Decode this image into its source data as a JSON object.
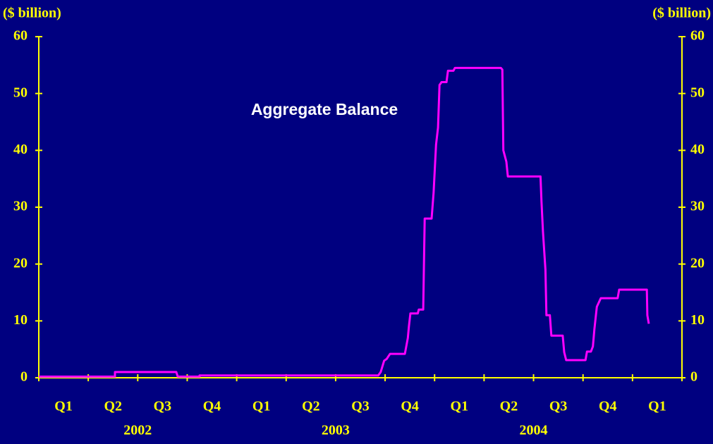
{
  "chart_data": {
    "type": "line",
    "y_label": "($ billion)",
    "y2_label": "($ billion)",
    "annotation": "Aggregate Balance",
    "categories": [
      "Q1",
      "Q2",
      "Q3",
      "Q4",
      "Q1",
      "Q2",
      "Q3",
      "Q4",
      "Q1",
      "Q2",
      "Q3",
      "Q4",
      "Q1"
    ],
    "years": [
      "2002",
      "2003",
      "2004"
    ],
    "xlim": [
      0,
      13
    ],
    "xticks": [
      0,
      1,
      2,
      3,
      4,
      5,
      6,
      7,
      8,
      9,
      10,
      11,
      12,
      13
    ],
    "ylim": [
      0,
      60
    ],
    "yticks": [
      0,
      10,
      20,
      30,
      40,
      50,
      60
    ],
    "y2lim": [
      0,
      60
    ],
    "y2ticks": [
      0,
      10,
      20,
      30,
      40,
      50,
      60
    ],
    "series": [
      {
        "name": "Aggregate Balance",
        "color": "#ff00ff",
        "x": [
          0,
          1.54,
          1.54,
          2.78,
          2.81,
          3.25,
          3.25,
          6.86,
          6.91,
          6.98,
          7.03,
          7.1,
          7.4,
          7.46,
          7.48,
          7.51,
          7.66,
          7.68,
          7.77,
          7.8,
          7.94,
          7.98,
          8.03,
          8.07,
          8.1,
          8.14,
          8.24,
          8.27,
          8.38,
          8.41,
          9.34,
          9.37,
          9.39,
          9.45,
          9.48,
          10.14,
          10.16,
          10.19,
          10.24,
          10.26,
          10.33,
          10.36,
          10.59,
          10.62,
          10.66,
          11.05,
          11.08,
          11.16,
          11.2,
          11.23,
          11.28,
          11.36,
          11.7,
          11.73,
          12.29,
          12.3,
          12.33
        ],
        "values": [
          0.2,
          0.2,
          1.0,
          1.0,
          0.2,
          0.2,
          0.4,
          0.4,
          1.0,
          3.0,
          3.3,
          4.2,
          4.2,
          7,
          9,
          11.3,
          11.3,
          12,
          12,
          28,
          28,
          32.5,
          41,
          44,
          51.5,
          52,
          52,
          54,
          54,
          54.5,
          54.5,
          54.2,
          40,
          38,
          35.4,
          35.4,
          31,
          25.7,
          19,
          11,
          11,
          7.4,
          7.4,
          4.5,
          3.1,
          3.1,
          4.6,
          4.6,
          5.5,
          8.5,
          12.5,
          14,
          14,
          15.5,
          15.5,
          11,
          9.5
        ]
      }
    ]
  }
}
